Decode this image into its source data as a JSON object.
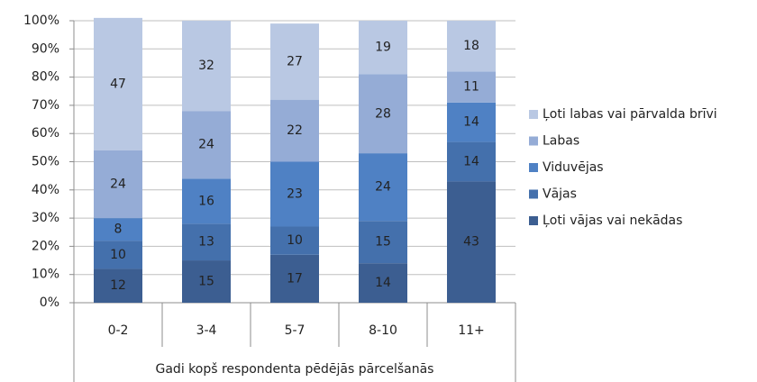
{
  "chart_data": {
    "type": "stacked_bar",
    "categories": [
      "0-2",
      "3-4",
      "5-7",
      "8-10",
      "11+"
    ],
    "x_label": "Gadi kopš respondenta pēdējās pārcelšanās",
    "series": [
      {
        "name": "Ļoti vājas vai nekādas",
        "color": "#3c5e91",
        "values": [
          12,
          15,
          17,
          14,
          43
        ]
      },
      {
        "name": "Vājas",
        "color": "#4470ac",
        "values": [
          10,
          13,
          10,
          15,
          14
        ]
      },
      {
        "name": "Viduvējas",
        "color": "#4f81c4",
        "values": [
          8,
          16,
          23,
          24,
          14
        ]
      },
      {
        "name": "Labas",
        "color": "#95acd6",
        "values": [
          24,
          24,
          22,
          28,
          11
        ]
      },
      {
        "name": "Ļoti labas vai pārvalda brīvi",
        "color": "#b9c8e3",
        "values": [
          47,
          32,
          27,
          19,
          18
        ]
      }
    ],
    "ylim": [
      0,
      100
    ],
    "yticks": [
      {
        "value": 0,
        "label": "0%"
      },
      {
        "value": 10,
        "label": "10%"
      },
      {
        "value": 20,
        "label": "20%"
      },
      {
        "value": 30,
        "label": "30%"
      },
      {
        "value": 40,
        "label": "40%"
      },
      {
        "value": 50,
        "label": "50%"
      },
      {
        "value": 60,
        "label": "60%"
      },
      {
        "value": 70,
        "label": "70%"
      },
      {
        "value": 80,
        "label": "80%"
      },
      {
        "value": 90,
        "label": "90%"
      },
      {
        "value": 100,
        "label": "100%"
      }
    ],
    "grid": true,
    "legend": "right"
  }
}
